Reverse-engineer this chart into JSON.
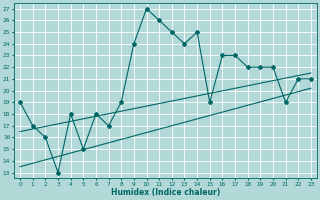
{
  "title": "",
  "xlabel": "Humidex (Indice chaleur)",
  "ylabel": "",
  "bg_color": "#b2d8d8",
  "grid_color": "#ffffff",
  "line_color": "#006666",
  "xlim": [
    -0.5,
    23.5
  ],
  "ylim": [
    12.5,
    27.5
  ],
  "xticks": [
    0,
    1,
    2,
    3,
    4,
    5,
    6,
    7,
    8,
    9,
    10,
    11,
    12,
    13,
    14,
    15,
    16,
    17,
    18,
    19,
    20,
    21,
    22,
    23
  ],
  "yticks": [
    13,
    14,
    15,
    16,
    17,
    18,
    19,
    20,
    21,
    22,
    23,
    24,
    25,
    26,
    27
  ],
  "data_x": [
    0,
    1,
    2,
    3,
    4,
    5,
    6,
    7,
    8,
    9,
    10,
    11,
    12,
    13,
    14,
    15,
    16,
    17,
    18,
    19,
    20,
    21,
    22,
    23
  ],
  "data_y": [
    19,
    17,
    16,
    13,
    18,
    15,
    18,
    17,
    19,
    24,
    27,
    26,
    25,
    24,
    25,
    19,
    23,
    23,
    22,
    22,
    22,
    19,
    21,
    21
  ],
  "trend1_x": [
    0,
    23
  ],
  "trend1_y": [
    16.5,
    21.5
  ],
  "trend2_x": [
    0,
    23
  ],
  "trend2_y": [
    13.5,
    20.2
  ]
}
